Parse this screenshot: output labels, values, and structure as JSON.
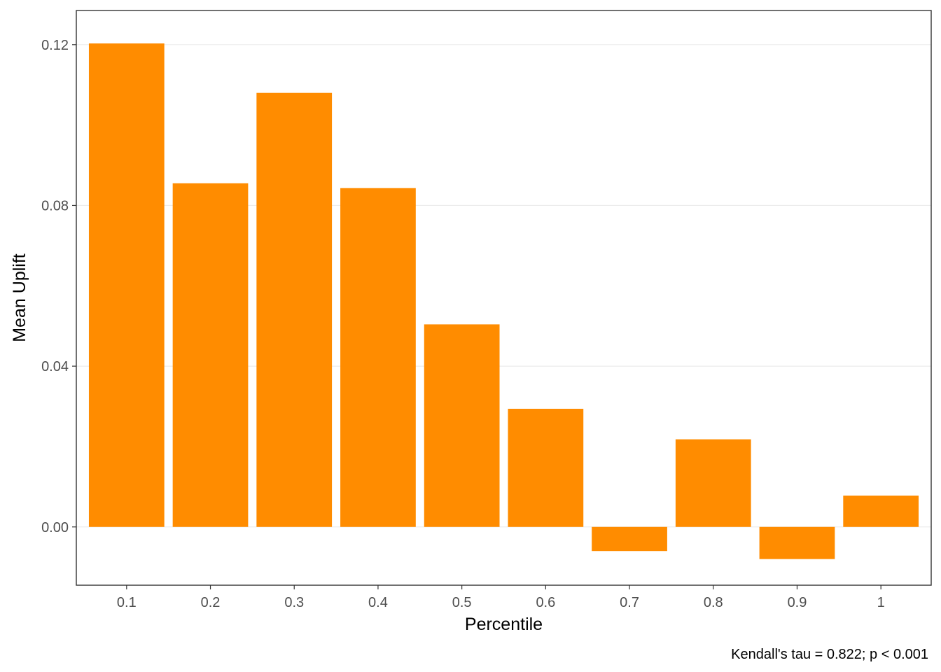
{
  "chart_data": {
    "type": "bar",
    "categories": [
      "0.1",
      "0.2",
      "0.3",
      "0.4",
      "0.5",
      "0.6",
      "0.7",
      "0.8",
      "0.9",
      "1"
    ],
    "values": [
      0.1203,
      0.0855,
      0.108,
      0.0843,
      0.0504,
      0.0294,
      -0.006,
      0.0218,
      -0.008,
      0.0078
    ],
    "title": "",
    "xlabel": "Percentile",
    "ylabel": "Mean Uplift",
    "ylim": [
      -0.0145,
      0.1285
    ],
    "yticks": [
      0.0,
      0.04,
      0.08,
      0.12
    ],
    "ytick_labels": [
      "0.00",
      "0.04",
      "0.08",
      "0.12"
    ],
    "grid": "horizontal",
    "legend": "none",
    "caption": "Kendall's tau = 0.822; p < 0.001",
    "bar_color": "#FF8C00"
  }
}
